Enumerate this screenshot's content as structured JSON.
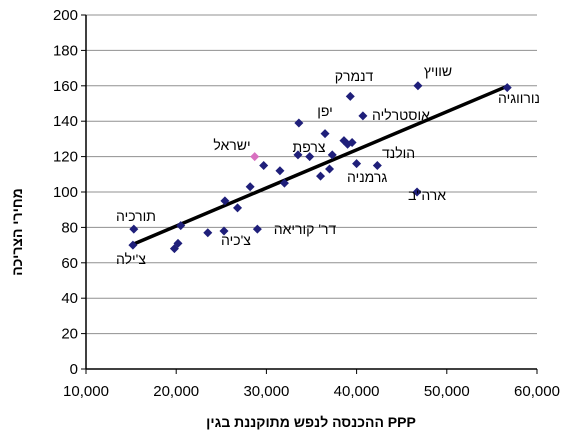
{
  "chart_data": {
    "type": "scatter",
    "xlabel": "ההכנסה לנפש מתוקננת בגין PPP",
    "ylabel": "מחירי הצריכה",
    "xlim": [
      10000,
      60000
    ],
    "ylim": [
      0,
      200
    ],
    "xticks": [
      10000,
      20000,
      30000,
      40000,
      50000,
      60000
    ],
    "xtick_labels": [
      "10,000",
      "20,000",
      "30,000",
      "40,000",
      "50,000",
      "60,000"
    ],
    "yticks": [
      0,
      20,
      40,
      60,
      80,
      100,
      120,
      140,
      160,
      180,
      200
    ],
    "ytick_labels": [
      "0",
      "20",
      "40",
      "60",
      "80",
      "100",
      "120",
      "140",
      "160",
      "180",
      "200"
    ],
    "grid": true,
    "legend": "none",
    "colors": {
      "point": "#1f1f7a",
      "highlight": "#d870c0",
      "trend": "#000000",
      "grid": "#909090"
    },
    "trendline": {
      "x": [
        15000,
        56800
      ],
      "y": [
        70,
        160
      ]
    },
    "points": [
      {
        "x": 15200,
        "y": 70
      },
      {
        "x": 15300,
        "y": 79
      },
      {
        "x": 19800,
        "y": 68
      },
      {
        "x": 20200,
        "y": 71
      },
      {
        "x": 20500,
        "y": 81
      },
      {
        "x": 23500,
        "y": 77
      },
      {
        "x": 25300,
        "y": 78
      },
      {
        "x": 25400,
        "y": 95
      },
      {
        "x": 26800,
        "y": 91
      },
      {
        "x": 28200,
        "y": 103
      },
      {
        "x": 28700,
        "y": 120,
        "highlight": true
      },
      {
        "x": 29000,
        "y": 79
      },
      {
        "x": 29700,
        "y": 115
      },
      {
        "x": 31500,
        "y": 112
      },
      {
        "x": 32000,
        "y": 105
      },
      {
        "x": 33500,
        "y": 121
      },
      {
        "x": 33600,
        "y": 139
      },
      {
        "x": 34800,
        "y": 120
      },
      {
        "x": 36000,
        "y": 109
      },
      {
        "x": 36500,
        "y": 133
      },
      {
        "x": 37000,
        "y": 113
      },
      {
        "x": 37300,
        "y": 121
      },
      {
        "x": 38600,
        "y": 129
      },
      {
        "x": 39000,
        "y": 127
      },
      {
        "x": 39300,
        "y": 154
      },
      {
        "x": 39500,
        "y": 128
      },
      {
        "x": 40000,
        "y": 116
      },
      {
        "x": 40700,
        "y": 143
      },
      {
        "x": 42300,
        "y": 115
      },
      {
        "x": 46700,
        "y": 100
      },
      {
        "x": 46800,
        "y": 160
      },
      {
        "x": 56700,
        "y": 159
      }
    ],
    "annotations": [
      {
        "text": "נורווגיה"
      },
      {
        "text": "שוויץ"
      },
      {
        "text": "דנמרק"
      },
      {
        "text": "אוסטרליה"
      },
      {
        "text": "יפן"
      },
      {
        "text": "ישראל"
      },
      {
        "text": "צרפת"
      },
      {
        "text": "הולנד"
      },
      {
        "text": "גרמניה"
      },
      {
        "text": "ארה\"ב"
      },
      {
        "text": "תורכיה"
      },
      {
        "text": "צ'ילה"
      },
      {
        "text": "צ'כיה"
      },
      {
        "text": "דר' קוריאה"
      }
    ]
  }
}
